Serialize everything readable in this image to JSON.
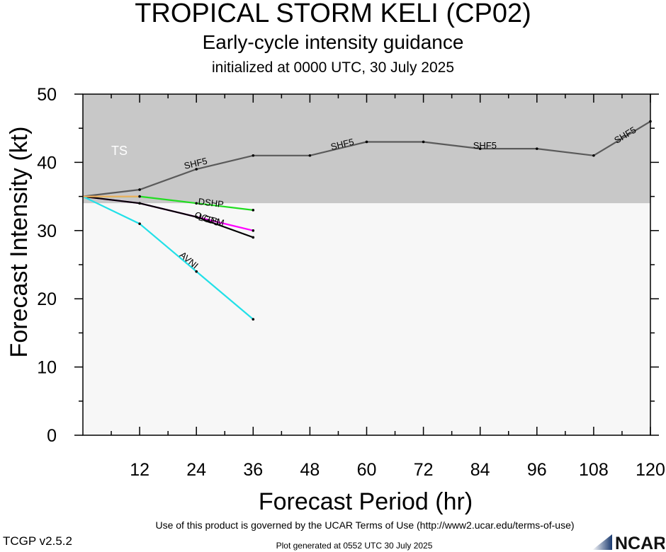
{
  "header": {
    "title": "TROPICAL STORM KELI (CP02)",
    "subtitle": "Early-cycle intensity guidance",
    "init_line": "initialized at 0000 UTC, 30 July 2025"
  },
  "footer": {
    "terms": "Use of this product is governed by the UCAR Terms of Use (http://www2.ucar.edu/terms-of-use)",
    "version": "TCGP v2.5.2",
    "generated": "Plot generated at 0552 UTC   30 July 2025",
    "logo_text": "NCAR"
  },
  "chart_data": {
    "type": "line",
    "xlabel": "Forecast Period (hr)",
    "ylabel": "Forecast Intensity (kt)",
    "xlim": [
      0,
      120
    ],
    "ylim": [
      0,
      50
    ],
    "xticks": [
      12,
      24,
      36,
      48,
      60,
      72,
      84,
      96,
      108,
      120
    ],
    "yticks": [
      0,
      10,
      20,
      30,
      40,
      50
    ],
    "grid": false,
    "bands": [
      {
        "label": "TS",
        "y_from": 34,
        "y_to": 50,
        "color": "#c8c8c8"
      },
      {
        "label": "",
        "y_from": 0,
        "y_to": 34,
        "color": "#f7f7f7"
      }
    ],
    "series": [
      {
        "name": "SHF5",
        "color": "#5a5a5a",
        "x": [
          0,
          12,
          24,
          36,
          48,
          60,
          72,
          84,
          96,
          108,
          120
        ],
        "y": [
          35,
          36,
          39,
          41,
          41,
          43,
          43,
          42,
          42,
          41,
          46
        ]
      },
      {
        "name": "DSHP",
        "color": "#22dd22",
        "x": [
          0,
          12,
          24,
          36
        ],
        "y": [
          35,
          35,
          34,
          33
        ]
      },
      {
        "name": "LGEM",
        "color": "#ff00ff",
        "x": [
          0,
          12,
          24,
          36
        ],
        "y": [
          35,
          34,
          32,
          30
        ]
      },
      {
        "name": "OCD5",
        "color": "#000000",
        "x": [
          0,
          12,
          24,
          36
        ],
        "y": [
          35,
          34,
          32,
          29
        ]
      },
      {
        "name": "AVNI",
        "color": "#22e0e8",
        "x": [
          0,
          12,
          24,
          36
        ],
        "y": [
          35,
          31,
          24,
          17
        ]
      },
      {
        "name": "",
        "color": "#f0b060",
        "x": [
          0,
          12
        ],
        "y": [
          35,
          35
        ]
      }
    ],
    "annotations": [
      {
        "text": "SHF5",
        "x": 24,
        "y": 39.4,
        "series": "SHF5"
      },
      {
        "text": "SHF5",
        "x": 55,
        "y": 42.2,
        "series": "SHF5"
      },
      {
        "text": "SHF5",
        "x": 85,
        "y": 42,
        "series": "SHF5"
      },
      {
        "text": "SHF5",
        "x": 115,
        "y": 43.6,
        "series": "SHF5"
      },
      {
        "text": "DSHP",
        "x": 27,
        "y": 33.6,
        "series": "DSHP"
      },
      {
        "text": "LGEM",
        "x": 27,
        "y": 31.1,
        "series": "LGEM"
      },
      {
        "text": "OCD5",
        "x": 26,
        "y": 31.3,
        "series": "OCD5"
      },
      {
        "text": "AVNI",
        "x": 22,
        "y": 25.3,
        "series": "AVNI"
      }
    ]
  }
}
